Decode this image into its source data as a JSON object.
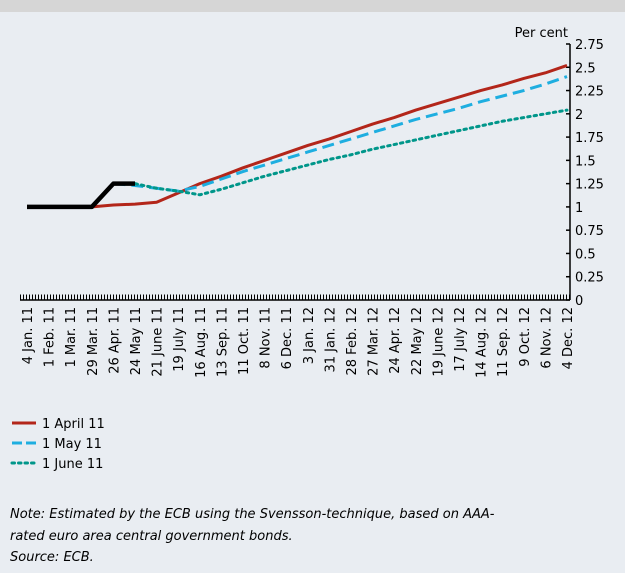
{
  "chart_data": {
    "type": "line",
    "y_axis_label": "Per cent",
    "categories": [
      "4 Jan. 11",
      "1 Feb. 11",
      "1 Mar. 11",
      "29 Mar. 11",
      "26 Apr. 11",
      "24 May 11",
      "21 June 11",
      "19 July 11",
      "16 Aug. 11",
      "13 Sep. 11",
      "11 Oct. 11",
      "8 Nov. 11",
      "6 Dec. 11",
      "3 Jan. 12",
      "31 Jan. 12",
      "28 Feb. 12",
      "27 Mar. 12",
      "24 Apr. 12",
      "22 May 12",
      "19 June 12",
      "17 July 12",
      "14 Aug. 12",
      "11 Sep. 12",
      "9 Oct. 12",
      "6 Nov. 12",
      "4 Dec. 12"
    ],
    "series": [
      {
        "name": "1 April 11",
        "color": "#b3261a",
        "dash": "solid",
        "values": [
          null,
          null,
          null,
          1.0,
          1.02,
          1.03,
          1.05,
          1.15,
          1.25,
          1.33,
          1.42,
          1.5,
          1.58,
          1.66,
          1.73,
          1.81,
          1.89,
          1.96,
          2.04,
          2.11,
          2.18,
          2.25,
          2.31,
          2.38,
          2.44,
          2.52
        ]
      },
      {
        "name": "1 May 11",
        "color": "#1eaee0",
        "dash": "dashed",
        "values": [
          null,
          null,
          null,
          null,
          1.25,
          1.23,
          1.2,
          1.17,
          1.22,
          1.3,
          1.38,
          1.45,
          1.52,
          1.59,
          1.66,
          1.73,
          1.8,
          1.87,
          1.94,
          2.0,
          2.06,
          2.13,
          2.19,
          2.25,
          2.32,
          2.4
        ]
      },
      {
        "name": "1 June 11",
        "color": "#00968a",
        "dash": "dotted",
        "values": [
          null,
          null,
          null,
          null,
          null,
          1.25,
          1.2,
          1.17,
          1.13,
          1.19,
          1.26,
          1.33,
          1.39,
          1.45,
          1.51,
          1.56,
          1.62,
          1.67,
          1.72,
          1.77,
          1.82,
          1.87,
          1.92,
          1.96,
          2.0,
          2.04
        ]
      },
      {
        "color": "#000000",
        "dash": "solid",
        "values": [
          1.0,
          1.0,
          1.0,
          1.0,
          1.25,
          1.25,
          null,
          null,
          null,
          null,
          null,
          null,
          null,
          null,
          null,
          null,
          null,
          null,
          null,
          null,
          null,
          null,
          null,
          null,
          null,
          null
        ]
      }
    ],
    "ylim": [
      0,
      2.75
    ],
    "yticks": [
      0,
      0.25,
      0.5,
      0.75,
      1,
      1.25,
      1.5,
      1.75,
      2,
      2.25,
      2.5,
      2.75
    ],
    "legend": "bottom-left"
  },
  "note": [
    "Note: Estimated by the ECB using the Svensson-technique, based on AAA-",
    "rated euro area central government bonds."
  ],
  "source": "Source: ECB."
}
